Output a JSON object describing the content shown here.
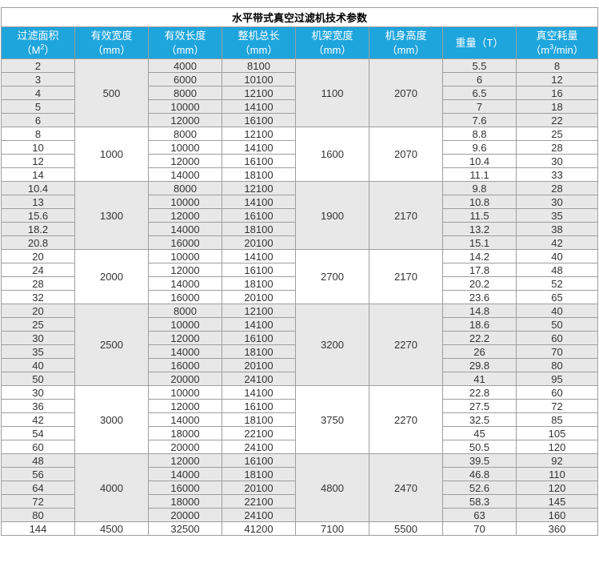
{
  "header": {
    "title": "水平带式真空过滤机技术参数",
    "columns": [
      {
        "id": "filter-area",
        "segments": [
          {
            "text": "过滤面积（M"
          },
          {
            "text": "2",
            "sup": true
          },
          {
            "text": "）"
          }
        ]
      },
      {
        "id": "effective-width",
        "segments": [
          {
            "text": "有效宽度（mm）"
          }
        ]
      },
      {
        "id": "effective-length",
        "segments": [
          {
            "text": "有效长度（mm）"
          }
        ]
      },
      {
        "id": "total-length",
        "segments": [
          {
            "text": "整机总长（mm）"
          }
        ]
      },
      {
        "id": "frame-width",
        "segments": [
          {
            "text": "机架宽度（mm）"
          }
        ]
      },
      {
        "id": "body-height",
        "segments": [
          {
            "text": "机身高度（mm）"
          }
        ]
      },
      {
        "id": "weight",
        "segments": [
          {
            "text": "重量（T）"
          }
        ]
      },
      {
        "id": "vacuum",
        "segments": [
          {
            "text": "真空耗量（m"
          },
          {
            "text": "3",
            "sup": true
          },
          {
            "text": "/min）"
          }
        ]
      }
    ]
  },
  "colors": {
    "header_bg": "#1ea5dc",
    "header_text": "#ffffff",
    "shaded_bg": "#e8e8e8",
    "border": "#9e9e9e",
    "text": "#333333",
    "title_text": "#000000"
  },
  "groups": [
    {
      "width": "500",
      "frame_width": "1100",
      "body_height": "2070",
      "shaded": true,
      "rows": [
        {
          "area": "2",
          "length": "4000",
          "total_length": "8100",
          "weight": "5.5",
          "vacuum": "8"
        },
        {
          "area": "3",
          "length": "6000",
          "total_length": "10100",
          "weight": "6",
          "vacuum": "12"
        },
        {
          "area": "4",
          "length": "8000",
          "total_length": "12100",
          "weight": "6.5",
          "vacuum": "16"
        },
        {
          "area": "5",
          "length": "10000",
          "total_length": "14100",
          "weight": "7",
          "vacuum": "18"
        },
        {
          "area": "6",
          "length": "12000",
          "total_length": "16100",
          "weight": "7.6",
          "vacuum": "22"
        }
      ]
    },
    {
      "width": "1000",
      "frame_width": "1600",
      "body_height": "2070",
      "shaded": false,
      "rows": [
        {
          "area": "8",
          "length": "8000",
          "total_length": "12100",
          "weight": "8.8",
          "vacuum": "25"
        },
        {
          "area": "10",
          "length": "10000",
          "total_length": "14100",
          "weight": "9.6",
          "vacuum": "28"
        },
        {
          "area": "12",
          "length": "12000",
          "total_length": "16100",
          "weight": "10.4",
          "vacuum": "30"
        },
        {
          "area": "14",
          "length": "14000",
          "total_length": "18100",
          "weight": "11.1",
          "vacuum": "33"
        }
      ]
    },
    {
      "width": "1300",
      "frame_width": "1900",
      "body_height": "2170",
      "shaded": true,
      "rows": [
        {
          "area": "10.4",
          "length": "8000",
          "total_length": "12100",
          "weight": "9.8",
          "vacuum": "28"
        },
        {
          "area": "13",
          "length": "10000",
          "total_length": "14100",
          "weight": "10.8",
          "vacuum": "30"
        },
        {
          "area": "15.6",
          "length": "12000",
          "total_length": "16100",
          "weight": "11.5",
          "vacuum": "35"
        },
        {
          "area": "18.2",
          "length": "14000",
          "total_length": "18100",
          "weight": "13.2",
          "vacuum": "38"
        },
        {
          "area": "20.8",
          "length": "16000",
          "total_length": "20100",
          "weight": "15.1",
          "vacuum": "42"
        }
      ]
    },
    {
      "width": "2000",
      "frame_width": "2700",
      "body_height": "2170",
      "shaded": false,
      "rows": [
        {
          "area": "20",
          "length": "10000",
          "total_length": "14100",
          "weight": "14.2",
          "vacuum": "40"
        },
        {
          "area": "24",
          "length": "12000",
          "total_length": "16100",
          "weight": "17.8",
          "vacuum": "48"
        },
        {
          "area": "28",
          "length": "14000",
          "total_length": "18100",
          "weight": "20.2",
          "vacuum": "52"
        },
        {
          "area": "32",
          "length": "16000",
          "total_length": "20100",
          "weight": "23.6",
          "vacuum": "65"
        }
      ]
    },
    {
      "width": "2500",
      "frame_width": "3200",
      "body_height": "2270",
      "shaded": true,
      "rows": [
        {
          "area": "20",
          "length": "8000",
          "total_length": "12100",
          "weight": "14.8",
          "vacuum": "40"
        },
        {
          "area": "25",
          "length": "10000",
          "total_length": "14100",
          "weight": "18.6",
          "vacuum": "50"
        },
        {
          "area": "30",
          "length": "12000",
          "total_length": "16100",
          "weight": "22.2",
          "vacuum": "60"
        },
        {
          "area": "35",
          "length": "14000",
          "total_length": "18100",
          "weight": "26",
          "vacuum": "70"
        },
        {
          "area": "40",
          "length": "16000",
          "total_length": "20100",
          "weight": "29.8",
          "vacuum": "80"
        },
        {
          "area": "50",
          "length": "20000",
          "total_length": "24100",
          "weight": "41",
          "vacuum": "95"
        }
      ]
    },
    {
      "width": "3000",
      "frame_width": "3750",
      "body_height": "2270",
      "shaded": false,
      "rows": [
        {
          "area": "30",
          "length": "10000",
          "total_length": "14100",
          "weight": "22.8",
          "vacuum": "60"
        },
        {
          "area": "36",
          "length": "12000",
          "total_length": "16100",
          "weight": "27.5",
          "vacuum": "72"
        },
        {
          "area": "42",
          "length": "14000",
          "total_length": "18100",
          "weight": "32.5",
          "vacuum": "85"
        },
        {
          "area": "54",
          "length": "18000",
          "total_length": "22100",
          "weight": "45",
          "vacuum": "105"
        },
        {
          "area": "60",
          "length": "20000",
          "total_length": "24100",
          "weight": "50.5",
          "vacuum": "120"
        }
      ]
    },
    {
      "width": "4000",
      "frame_width": "4800",
      "body_height": "2470",
      "shaded": true,
      "rows": [
        {
          "area": "48",
          "length": "12000",
          "total_length": "16100",
          "weight": "39.5",
          "vacuum": "92"
        },
        {
          "area": "56",
          "length": "14000",
          "total_length": "18100",
          "weight": "46.8",
          "vacuum": "110"
        },
        {
          "area": "64",
          "length": "16000",
          "total_length": "20100",
          "weight": "52.6",
          "vacuum": "120"
        },
        {
          "area": "72",
          "length": "18000",
          "total_length": "22100",
          "weight": "58.3",
          "vacuum": "145"
        },
        {
          "area": "80",
          "length": "20000",
          "total_length": "24100",
          "weight": "63",
          "vacuum": "160"
        }
      ]
    },
    {
      "width": "4500",
      "frame_width": "7100",
      "body_height": "5500",
      "shaded": false,
      "rows": [
        {
          "area": "144",
          "length": "32500",
          "total_length": "41200",
          "weight": "70",
          "vacuum": "360"
        }
      ]
    }
  ],
  "chart_data": {
    "type": "table",
    "title": "水平带式真空过滤机技术参数",
    "columns": [
      "过滤面积（M2）",
      "有效宽度（mm）",
      "有效长度（mm）",
      "整机总长（mm）",
      "机架宽度（mm）",
      "机身高度（mm）",
      "重量（T）",
      "真空耗量（m3/min）"
    ],
    "rows": [
      [
        2,
        500,
        4000,
        8100,
        1100,
        2070,
        5.5,
        8
      ],
      [
        3,
        500,
        6000,
        10100,
        1100,
        2070,
        6,
        12
      ],
      [
        4,
        500,
        8000,
        12100,
        1100,
        2070,
        6.5,
        16
      ],
      [
        5,
        500,
        10000,
        14100,
        1100,
        2070,
        7,
        18
      ],
      [
        6,
        500,
        12000,
        16100,
        1100,
        2070,
        7.6,
        22
      ],
      [
        8,
        1000,
        8000,
        12100,
        1600,
        2070,
        8.8,
        25
      ],
      [
        10,
        1000,
        10000,
        14100,
        1600,
        2070,
        9.6,
        28
      ],
      [
        12,
        1000,
        12000,
        16100,
        1600,
        2070,
        10.4,
        30
      ],
      [
        14,
        1000,
        14000,
        18100,
        1600,
        2070,
        11.1,
        33
      ],
      [
        10.4,
        1300,
        8000,
        12100,
        1900,
        2170,
        9.8,
        28
      ],
      [
        13,
        1300,
        10000,
        14100,
        1900,
        2170,
        10.8,
        30
      ],
      [
        15.6,
        1300,
        12000,
        16100,
        1900,
        2170,
        11.5,
        35
      ],
      [
        18.2,
        1300,
        14000,
        18100,
        1900,
        2170,
        13.2,
        38
      ],
      [
        20.8,
        1300,
        16000,
        20100,
        1900,
        2170,
        15.1,
        42
      ],
      [
        20,
        2000,
        10000,
        14100,
        2700,
        2170,
        14.2,
        40
      ],
      [
        24,
        2000,
        12000,
        16100,
        2700,
        2170,
        17.8,
        48
      ],
      [
        28,
        2000,
        14000,
        18100,
        2700,
        2170,
        20.2,
        52
      ],
      [
        32,
        2000,
        16000,
        20100,
        2700,
        2170,
        23.6,
        65
      ],
      [
        20,
        2500,
        8000,
        12100,
        3200,
        2270,
        14.8,
        40
      ],
      [
        25,
        2500,
        10000,
        14100,
        3200,
        2270,
        18.6,
        50
      ],
      [
        30,
        2500,
        12000,
        16100,
        3200,
        2270,
        22.2,
        60
      ],
      [
        35,
        2500,
        14000,
        18100,
        3200,
        2270,
        26,
        70
      ],
      [
        40,
        2500,
        16000,
        20100,
        3200,
        2270,
        29.8,
        80
      ],
      [
        50,
        2500,
        20000,
        24100,
        3200,
        2270,
        41,
        95
      ],
      [
        30,
        3000,
        10000,
        14100,
        3750,
        2270,
        22.8,
        60
      ],
      [
        36,
        3000,
        12000,
        16100,
        3750,
        2270,
        27.5,
        72
      ],
      [
        42,
        3000,
        14000,
        18100,
        3750,
        2270,
        32.5,
        85
      ],
      [
        54,
        3000,
        18000,
        22100,
        3750,
        2270,
        45,
        105
      ],
      [
        60,
        3000,
        20000,
        24100,
        3750,
        2270,
        50.5,
        120
      ],
      [
        48,
        4000,
        12000,
        16100,
        4800,
        2470,
        39.5,
        92
      ],
      [
        56,
        4000,
        14000,
        18100,
        4800,
        2470,
        46.8,
        110
      ],
      [
        64,
        4000,
        16000,
        20100,
        4800,
        2470,
        52.6,
        120
      ],
      [
        72,
        4000,
        18000,
        22100,
        4800,
        2470,
        58.3,
        145
      ],
      [
        80,
        4000,
        20000,
        24100,
        4800,
        2470,
        63,
        160
      ],
      [
        144,
        4500,
        32500,
        41200,
        7100,
        5500,
        70,
        360
      ]
    ]
  }
}
